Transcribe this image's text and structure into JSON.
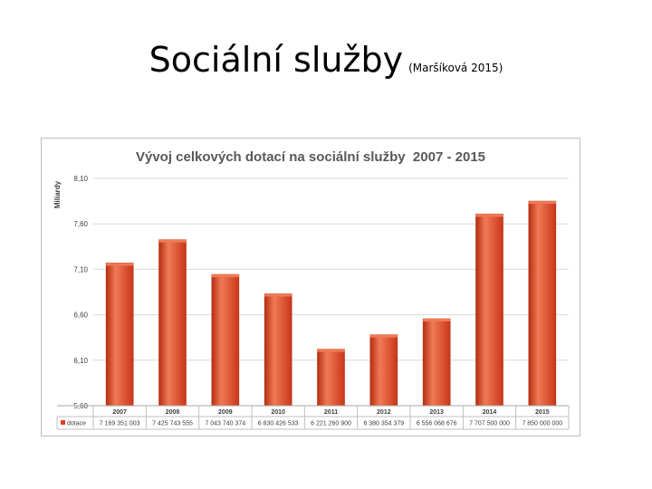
{
  "slide": {
    "title": "Sociální služby",
    "source": "(Maršíková 2015)"
  },
  "colors": {
    "bar": "#e2401c",
    "bar_dark": "#b52e10",
    "bar_light": "#f07a55",
    "grid": "#d9d9d9",
    "text": "#404040",
    "title": "#595959"
  },
  "chart_data": {
    "type": "bar",
    "title": "Vývoj celkových dotací na sociální služby  2007 - 2015",
    "ylabel": "Miliardy",
    "xlabel": "",
    "ylim": [
      5.6,
      8.1
    ],
    "yticks": [
      "5,60",
      "6,10",
      "6,60",
      "7,10",
      "7,60",
      "8,10"
    ],
    "ytick_values": [
      5.6,
      6.1,
      6.6,
      7.1,
      7.6,
      8.1
    ],
    "grid": true,
    "categories": [
      "2007",
      "2008",
      "2009",
      "2010",
      "2011",
      "2012",
      "2013",
      "2014",
      "2015"
    ],
    "series": [
      {
        "name": "dotace",
        "values": [
          7.169351003,
          7.425743555,
          7.043740374,
          6.830426533,
          6.2212609,
          6.380354379,
          6.556068676,
          7.7075,
          7.85
        ],
        "labels": [
          "7 169 351 003",
          "7 425 743 555",
          "7 043 740 374",
          "6 830 426 533",
          "6 221 260 900",
          "6 380 354 379",
          "6 556 068 676",
          "7 707 500 000",
          "7 850 000 000"
        ]
      }
    ],
    "legend": "data-table"
  }
}
